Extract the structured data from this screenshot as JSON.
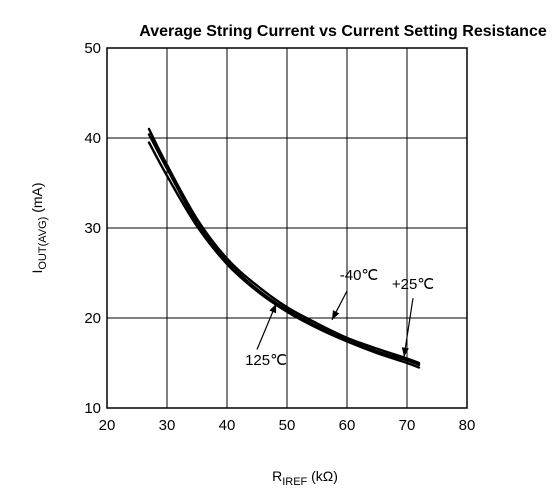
{
  "chart_data": {
    "type": "line",
    "title": "Average String Current vs Current Setting Resistance",
    "ylabel_main": "I",
    "ylabel_sub": "OUT(AVG)",
    "ylabel_unit": " (mA)",
    "xlabel_main": "R",
    "xlabel_sub": "IREF",
    "xlabel_unit": " (kΩ)",
    "xlim": [
      20,
      80
    ],
    "ylim": [
      10,
      50
    ],
    "xticks": [
      "20",
      "30",
      "40",
      "50",
      "60",
      "70",
      "80"
    ],
    "yticks": [
      "10",
      "20",
      "30",
      "40",
      "50"
    ],
    "grid": true,
    "series": [
      {
        "name": "-40℃",
        "x": [
          27,
          30,
          35,
          40,
          45,
          50,
          55,
          60,
          65,
          70,
          72
        ],
        "y": [
          41.0,
          37.0,
          31.0,
          26.6,
          23.6,
          21.2,
          19.4,
          17.8,
          16.6,
          15.5,
          15.0
        ]
      },
      {
        "name": "+25℃",
        "x": [
          27,
          30,
          35,
          40,
          45,
          50,
          55,
          60,
          65,
          70,
          72
        ],
        "y": [
          40.4,
          36.6,
          30.6,
          26.3,
          23.2,
          20.9,
          19.1,
          17.6,
          16.3,
          15.3,
          14.8
        ]
      },
      {
        "name": "125℃",
        "x": [
          27,
          30,
          35,
          40,
          45,
          50,
          55,
          60,
          65,
          70,
          72
        ],
        "y": [
          39.5,
          35.8,
          30.2,
          26.0,
          23.0,
          20.7,
          18.9,
          17.4,
          16.1,
          15.0,
          14.5
        ]
      }
    ],
    "annotations": [
      {
        "label": "-40℃",
        "text_x": 62,
        "text_y": 24.2,
        "arrow_from": [
          60,
          23.0
        ],
        "arrow_to": [
          57.5,
          19.8
        ]
      },
      {
        "label": "+25℃",
        "text_x": 71,
        "text_y": 23.2,
        "arrow_from": [
          71,
          22.2
        ],
        "arrow_to": [
          69.5,
          15.7
        ]
      },
      {
        "label": "125℃",
        "text_x": 46.5,
        "text_y": 14.8,
        "arrow_from": [
          45,
          16.5
        ],
        "arrow_to": [
          48.2,
          21.6
        ]
      }
    ]
  }
}
